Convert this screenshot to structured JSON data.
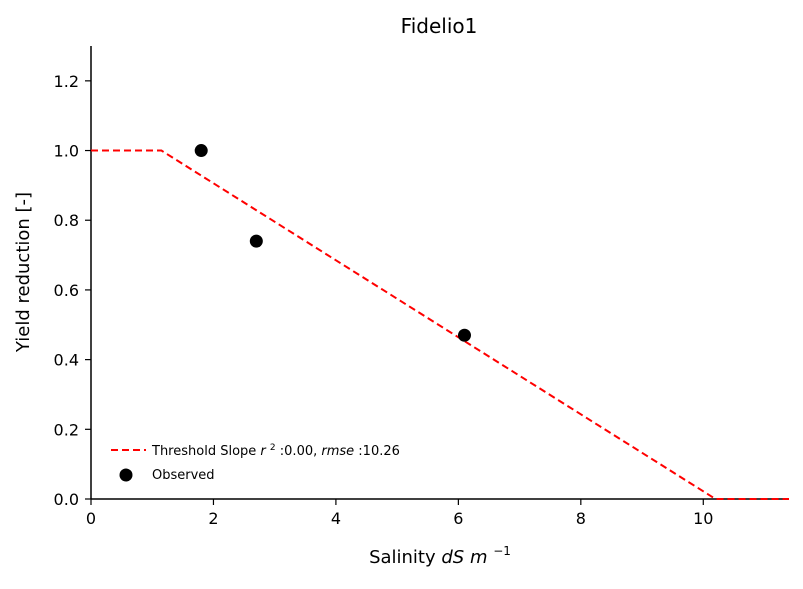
{
  "chart_data": {
    "type": "scatter",
    "title": "Fidelio1",
    "xlabel": {
      "prefix": "Salinity ",
      "unit_italic": "dS m",
      "superscript": "−1"
    },
    "ylabel": "Yield reduction [-]",
    "xlim": [
      0,
      11.4
    ],
    "ylim": [
      0,
      1.3
    ],
    "xticks": [
      0,
      2,
      4,
      6,
      8,
      10
    ],
    "yticks": [
      0.0,
      0.2,
      0.4,
      0.6,
      0.8,
      1.0,
      1.2
    ],
    "xtick_labels": [
      "0",
      "2",
      "4",
      "6",
      "8",
      "10"
    ],
    "ytick_labels": [
      "0.0",
      "0.2",
      "0.4",
      "0.6",
      "0.8",
      "1.0",
      "1.2"
    ],
    "grid": false,
    "legend_position": "lower-left",
    "series": [
      {
        "name": "Threshold Slope",
        "legend": {
          "prefix": "Threshold Slope ",
          "r2_label": "r",
          "r2_sup": "2",
          "r2_value": ":0.00, ",
          "rmse_label": "rmse",
          "rmse_value": ":10.26"
        },
        "kind": "line",
        "style": "dashed",
        "color": "#ff0000",
        "x": [
          0,
          1.15,
          10.2,
          11.4
        ],
        "y": [
          1.0,
          1.0,
          0.0,
          0.0
        ]
      },
      {
        "name": "Observed",
        "kind": "scatter",
        "color": "#000000",
        "x": [
          1.8,
          2.7,
          6.1
        ],
        "y": [
          1.0,
          0.74,
          0.47
        ]
      }
    ]
  }
}
